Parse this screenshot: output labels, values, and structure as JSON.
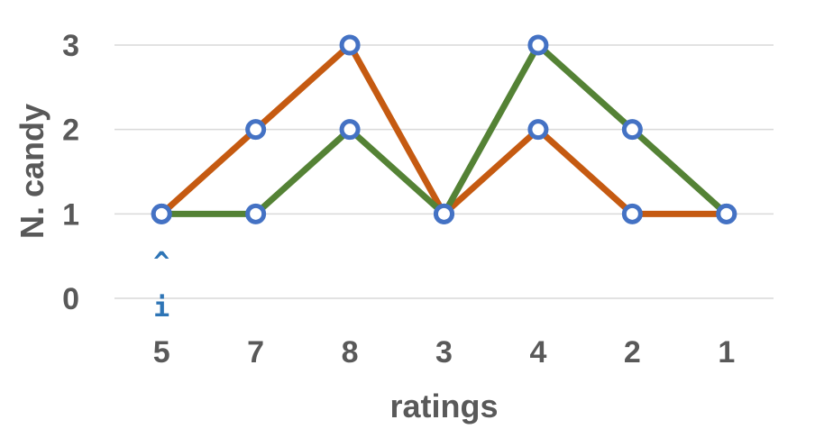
{
  "chart_data": {
    "type": "line",
    "categories": [
      "5",
      "7",
      "8",
      "3",
      "4",
      "2",
      "1"
    ],
    "series": [
      {
        "color": "#c55a11",
        "values": [
          1,
          2,
          3,
          1,
          2,
          1,
          1
        ]
      },
      {
        "color": "#548235",
        "values": [
          1,
          1,
          2,
          1,
          3,
          2,
          1
        ]
      }
    ],
    "marker_color": "#4472c4",
    "xlabel": "ratings",
    "ylabel": "N. candy",
    "ylim": [
      0,
      3
    ],
    "yticks": [
      "0",
      "1",
      "2",
      "3"
    ],
    "grid": true,
    "annotations": {
      "caret": "^",
      "index": "i",
      "at_category": "5"
    }
  }
}
